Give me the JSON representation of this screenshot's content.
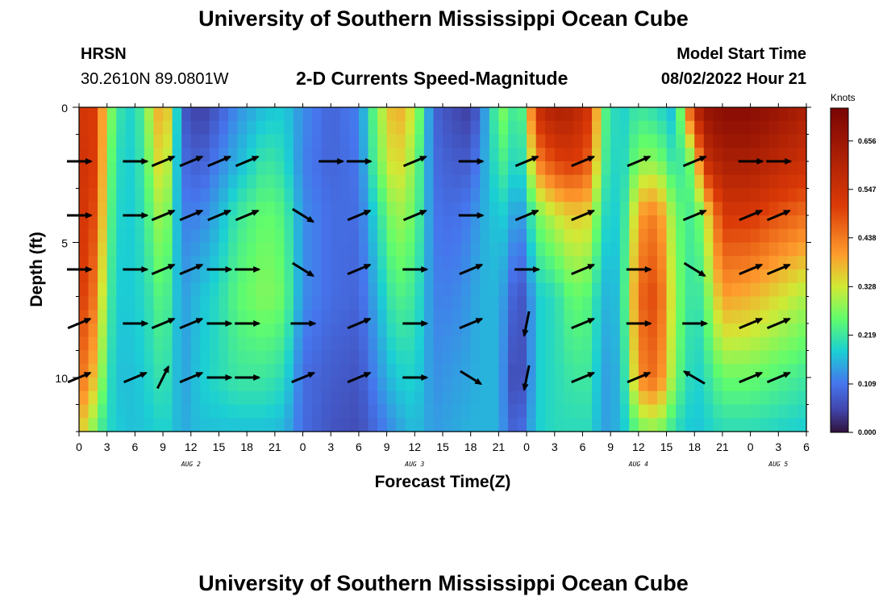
{
  "header": {
    "title": "University of Southern Mississippi Ocean Cube",
    "station": "HRSN",
    "coords": "30.2610N  89.0801W",
    "subtitle": "2-D Currents Speed-Magnitude",
    "model_label": "Model Start Time",
    "model_time": "08/02/2022 Hour 21"
  },
  "footer": {
    "title": "University of Southern Mississippi Ocean Cube"
  },
  "chart_data": {
    "type": "heatmap",
    "title": "2-D Currents Speed-Magnitude",
    "xlabel": "Forecast Time(Z)",
    "ylabel": "Depth (ft)",
    "colorbar_label": "Knots",
    "x_hours": [
      0,
      3,
      6,
      9,
      12,
      15,
      18,
      21,
      24,
      27,
      30,
      33,
      36,
      39,
      42,
      45,
      48,
      51,
      54,
      57,
      60,
      63,
      66,
      69,
      72,
      75,
      78
    ],
    "x_tick_labels": [
      "0",
      "3",
      "6",
      "9",
      "12",
      "15",
      "18",
      "21",
      "0",
      "3",
      "6",
      "9",
      "12",
      "15",
      "18",
      "21",
      "0",
      "3",
      "6",
      "9",
      "12",
      "15",
      "18",
      "21",
      "0",
      "3",
      "6"
    ],
    "day_labels": [
      {
        "label": "AUG 2",
        "hour": 12
      },
      {
        "label": "AUG 3",
        "hour": 36
      },
      {
        "label": "AUG 4",
        "hour": 60
      },
      {
        "label": "AUG 5",
        "hour": 75
      }
    ],
    "y_ticks": [
      0,
      5,
      10
    ],
    "ylim": [
      0,
      12
    ],
    "xlim": [
      0,
      78
    ],
    "colorbar_ticks": [
      "0.000",
      "0.109",
      "0.219",
      "0.328",
      "0.438",
      "0.547",
      "0.656"
    ],
    "colorbar_range": [
      0,
      0.73
    ],
    "speed_profiles": [
      {
        "t": 0,
        "speeds": [
          0.5,
          0.52,
          0.52,
          0.5,
          0.45,
          0.36
        ]
      },
      {
        "t": 1,
        "speeds": [
          0.55,
          0.55,
          0.53,
          0.5,
          0.42,
          0.32
        ]
      },
      {
        "t": 2,
        "speeds": [
          0.48,
          0.48,
          0.46,
          0.4,
          0.33,
          0.24
        ]
      },
      {
        "t": 3,
        "speeds": [
          0.32,
          0.3,
          0.28,
          0.25,
          0.22,
          0.2
        ]
      },
      {
        "t": 4,
        "speeds": [
          0.22,
          0.2,
          0.19,
          0.18,
          0.17,
          0.18
        ]
      },
      {
        "t": 6,
        "speeds": [
          0.18,
          0.18,
          0.18,
          0.18,
          0.17,
          0.17
        ]
      },
      {
        "t": 8,
        "speeds": [
          0.34,
          0.3,
          0.26,
          0.22,
          0.2,
          0.18
        ]
      },
      {
        "t": 9,
        "speeds": [
          0.42,
          0.38,
          0.32,
          0.26,
          0.22,
          0.19
        ]
      },
      {
        "t": 10,
        "speeds": [
          0.3,
          0.25,
          0.22,
          0.2,
          0.19,
          0.18
        ]
      },
      {
        "t": 11,
        "speeds": [
          0.08,
          0.1,
          0.12,
          0.14,
          0.14,
          0.15
        ]
      },
      {
        "t": 13,
        "speeds": [
          0.04,
          0.08,
          0.12,
          0.17,
          0.18,
          0.17
        ]
      },
      {
        "t": 15,
        "speeds": [
          0.08,
          0.12,
          0.16,
          0.2,
          0.2,
          0.17
        ]
      },
      {
        "t": 17,
        "speeds": [
          0.13,
          0.16,
          0.22,
          0.25,
          0.22,
          0.17
        ]
      },
      {
        "t": 20,
        "speeds": [
          0.17,
          0.22,
          0.26,
          0.28,
          0.22,
          0.17
        ]
      },
      {
        "t": 22,
        "speeds": [
          0.18,
          0.2,
          0.24,
          0.26,
          0.2,
          0.16
        ]
      },
      {
        "t": 24,
        "speeds": [
          0.13,
          0.12,
          0.13,
          0.13,
          0.1,
          0.1
        ]
      },
      {
        "t": 27,
        "speeds": [
          0.09,
          0.09,
          0.1,
          0.1,
          0.08,
          0.07
        ]
      },
      {
        "t": 30,
        "speeds": [
          0.12,
          0.11,
          0.1,
          0.09,
          0.07,
          0.06
        ]
      },
      {
        "t": 32,
        "speeds": [
          0.28,
          0.26,
          0.2,
          0.16,
          0.13,
          0.1
        ]
      },
      {
        "t": 34,
        "speeds": [
          0.4,
          0.36,
          0.3,
          0.24,
          0.18,
          0.14
        ]
      },
      {
        "t": 36,
        "speeds": [
          0.32,
          0.28,
          0.26,
          0.22,
          0.19,
          0.17
        ]
      },
      {
        "t": 38,
        "speeds": [
          0.09,
          0.1,
          0.11,
          0.12,
          0.13,
          0.14
        ]
      },
      {
        "t": 40,
        "speeds": [
          0.06,
          0.08,
          0.1,
          0.12,
          0.14,
          0.15
        ]
      },
      {
        "t": 42,
        "speeds": [
          0.04,
          0.08,
          0.12,
          0.14,
          0.15,
          0.16
        ]
      },
      {
        "t": 43,
        "speeds": [
          0.1,
          0.13,
          0.15,
          0.16,
          0.16,
          0.16
        ]
      },
      {
        "t": 45,
        "speeds": [
          0.26,
          0.22,
          0.18,
          0.16,
          0.16,
          0.16
        ]
      },
      {
        "t": 46,
        "speeds": [
          0.28,
          0.24,
          0.18,
          0.12,
          0.09,
          0.1
        ]
      },
      {
        "t": 47,
        "speeds": [
          0.18,
          0.16,
          0.12,
          0.06,
          0.04,
          0.08
        ]
      },
      {
        "t": 48,
        "speeds": [
          0.3,
          0.25,
          0.17,
          0.09,
          0.09,
          0.12
        ]
      },
      {
        "t": 49,
        "speeds": [
          0.55,
          0.42,
          0.26,
          0.18,
          0.18,
          0.18
        ]
      },
      {
        "t": 51,
        "speeds": [
          0.62,
          0.5,
          0.32,
          0.2,
          0.2,
          0.2
        ]
      },
      {
        "t": 53,
        "speeds": [
          0.6,
          0.52,
          0.36,
          0.26,
          0.22,
          0.2
        ]
      },
      {
        "t": 55,
        "speeds": [
          0.52,
          0.46,
          0.34,
          0.24,
          0.22,
          0.2
        ]
      },
      {
        "t": 56,
        "speeds": [
          0.26,
          0.24,
          0.2,
          0.16,
          0.14,
          0.14
        ]
      },
      {
        "t": 58,
        "speeds": [
          0.18,
          0.18,
          0.18,
          0.17,
          0.16,
          0.16
        ]
      },
      {
        "t": 59,
        "speeds": [
          0.2,
          0.22,
          0.26,
          0.3,
          0.26,
          0.2
        ]
      },
      {
        "t": 60,
        "speeds": [
          0.22,
          0.28,
          0.4,
          0.46,
          0.42,
          0.26
        ]
      },
      {
        "t": 62,
        "speeds": [
          0.2,
          0.28,
          0.44,
          0.5,
          0.46,
          0.28
        ]
      },
      {
        "t": 64,
        "speeds": [
          0.16,
          0.2,
          0.26,
          0.28,
          0.26,
          0.2
        ]
      },
      {
        "t": 66,
        "speeds": [
          0.58,
          0.28,
          0.22,
          0.2,
          0.18,
          0.17
        ]
      },
      {
        "t": 67,
        "speeds": [
          0.66,
          0.55,
          0.3,
          0.24,
          0.2,
          0.18
        ]
      },
      {
        "t": 69,
        "speeds": [
          0.7,
          0.62,
          0.52,
          0.4,
          0.26,
          0.2
        ]
      },
      {
        "t": 72,
        "speeds": [
          0.7,
          0.62,
          0.52,
          0.38,
          0.26,
          0.2
        ]
      },
      {
        "t": 75,
        "speeds": [
          0.66,
          0.58,
          0.48,
          0.34,
          0.24,
          0.19
        ]
      },
      {
        "t": 78,
        "speeds": [
          0.62,
          0.55,
          0.45,
          0.3,
          0.22,
          0.18
        ]
      }
    ],
    "profile_depths": [
      0,
      2,
      4,
      7,
      10,
      12
    ],
    "vectors": [
      {
        "t": 0,
        "d": 2,
        "dir": "right"
      },
      {
        "t": 0,
        "d": 4,
        "dir": "right"
      },
      {
        "t": 0,
        "d": 6,
        "dir": "right"
      },
      {
        "t": 0,
        "d": 8,
        "dir": "up-right"
      },
      {
        "t": 0,
        "d": 10,
        "dir": "up-right"
      },
      {
        "t": 6,
        "d": 2,
        "dir": "right"
      },
      {
        "t": 6,
        "d": 4,
        "dir": "right"
      },
      {
        "t": 6,
        "d": 6,
        "dir": "right"
      },
      {
        "t": 6,
        "d": 8,
        "dir": "right"
      },
      {
        "t": 6,
        "d": 10,
        "dir": "up-right"
      },
      {
        "t": 9,
        "d": 2,
        "dir": "up-right"
      },
      {
        "t": 9,
        "d": 4,
        "dir": "up-right"
      },
      {
        "t": 9,
        "d": 6,
        "dir": "up-right"
      },
      {
        "t": 9,
        "d": 8,
        "dir": "up-right"
      },
      {
        "t": 9,
        "d": 10,
        "dir": "up"
      },
      {
        "t": 12,
        "d": 2,
        "dir": "up-right"
      },
      {
        "t": 12,
        "d": 4,
        "dir": "up-right"
      },
      {
        "t": 12,
        "d": 6,
        "dir": "up-right"
      },
      {
        "t": 12,
        "d": 8,
        "dir": "up-right"
      },
      {
        "t": 12,
        "d": 10,
        "dir": "up-right"
      },
      {
        "t": 15,
        "d": 2,
        "dir": "up-right"
      },
      {
        "t": 15,
        "d": 4,
        "dir": "up-right"
      },
      {
        "t": 15,
        "d": 6,
        "dir": "right"
      },
      {
        "t": 15,
        "d": 8,
        "dir": "right"
      },
      {
        "t": 15,
        "d": 10,
        "dir": "right"
      },
      {
        "t": 18,
        "d": 2,
        "dir": "up-right"
      },
      {
        "t": 18,
        "d": 4,
        "dir": "up-right"
      },
      {
        "t": 18,
        "d": 6,
        "dir": "right"
      },
      {
        "t": 18,
        "d": 8,
        "dir": "right"
      },
      {
        "t": 18,
        "d": 10,
        "dir": "right"
      },
      {
        "t": 24,
        "d": 4,
        "dir": "down-right"
      },
      {
        "t": 24,
        "d": 6,
        "dir": "down-right"
      },
      {
        "t": 24,
        "d": 8,
        "dir": "right"
      },
      {
        "t": 24,
        "d": 10,
        "dir": "up-right"
      },
      {
        "t": 27,
        "d": 2,
        "dir": "right"
      },
      {
        "t": 30,
        "d": 2,
        "dir": "right"
      },
      {
        "t": 30,
        "d": 4,
        "dir": "up-right"
      },
      {
        "t": 30,
        "d": 6,
        "dir": "up-right"
      },
      {
        "t": 30,
        "d": 8,
        "dir": "up-right"
      },
      {
        "t": 30,
        "d": 10,
        "dir": "up-right"
      },
      {
        "t": 36,
        "d": 2,
        "dir": "up-right"
      },
      {
        "t": 36,
        "d": 4,
        "dir": "up-right"
      },
      {
        "t": 36,
        "d": 6,
        "dir": "right"
      },
      {
        "t": 36,
        "d": 8,
        "dir": "right"
      },
      {
        "t": 36,
        "d": 10,
        "dir": "right"
      },
      {
        "t": 42,
        "d": 2,
        "dir": "right"
      },
      {
        "t": 42,
        "d": 4,
        "dir": "right"
      },
      {
        "t": 42,
        "d": 6,
        "dir": "up-right"
      },
      {
        "t": 42,
        "d": 8,
        "dir": "up-right"
      },
      {
        "t": 42,
        "d": 10,
        "dir": "down-right"
      },
      {
        "t": 48,
        "d": 2,
        "dir": "up-right"
      },
      {
        "t": 48,
        "d": 4,
        "dir": "up-right"
      },
      {
        "t": 48,
        "d": 6,
        "dir": "right"
      },
      {
        "t": 48,
        "d": 8,
        "dir": "down"
      },
      {
        "t": 48,
        "d": 10,
        "dir": "down"
      },
      {
        "t": 54,
        "d": 2,
        "dir": "up-right"
      },
      {
        "t": 54,
        "d": 4,
        "dir": "up-right"
      },
      {
        "t": 54,
        "d": 6,
        "dir": "up-right"
      },
      {
        "t": 54,
        "d": 8,
        "dir": "up-right"
      },
      {
        "t": 54,
        "d": 10,
        "dir": "up-right"
      },
      {
        "t": 60,
        "d": 2,
        "dir": "up-right"
      },
      {
        "t": 60,
        "d": 6,
        "dir": "right"
      },
      {
        "t": 60,
        "d": 8,
        "dir": "right"
      },
      {
        "t": 60,
        "d": 10,
        "dir": "up-right"
      },
      {
        "t": 66,
        "d": 2,
        "dir": "up-right"
      },
      {
        "t": 66,
        "d": 4,
        "dir": "up-right"
      },
      {
        "t": 66,
        "d": 6,
        "dir": "down-right"
      },
      {
        "t": 66,
        "d": 8,
        "dir": "right"
      },
      {
        "t": 66,
        "d": 10,
        "dir": "up-left"
      },
      {
        "t": 72,
        "d": 2,
        "dir": "right"
      },
      {
        "t": 72,
        "d": 4,
        "dir": "up-right"
      },
      {
        "t": 72,
        "d": 6,
        "dir": "up-right"
      },
      {
        "t": 72,
        "d": 8,
        "dir": "up-right"
      },
      {
        "t": 72,
        "d": 10,
        "dir": "up-right"
      },
      {
        "t": 75,
        "d": 2,
        "dir": "right"
      },
      {
        "t": 75,
        "d": 4,
        "dir": "up-right"
      },
      {
        "t": 75,
        "d": 6,
        "dir": "up-right"
      },
      {
        "t": 75,
        "d": 8,
        "dir": "up-right"
      },
      {
        "t": 75,
        "d": 10,
        "dir": "up-right"
      }
    ]
  }
}
